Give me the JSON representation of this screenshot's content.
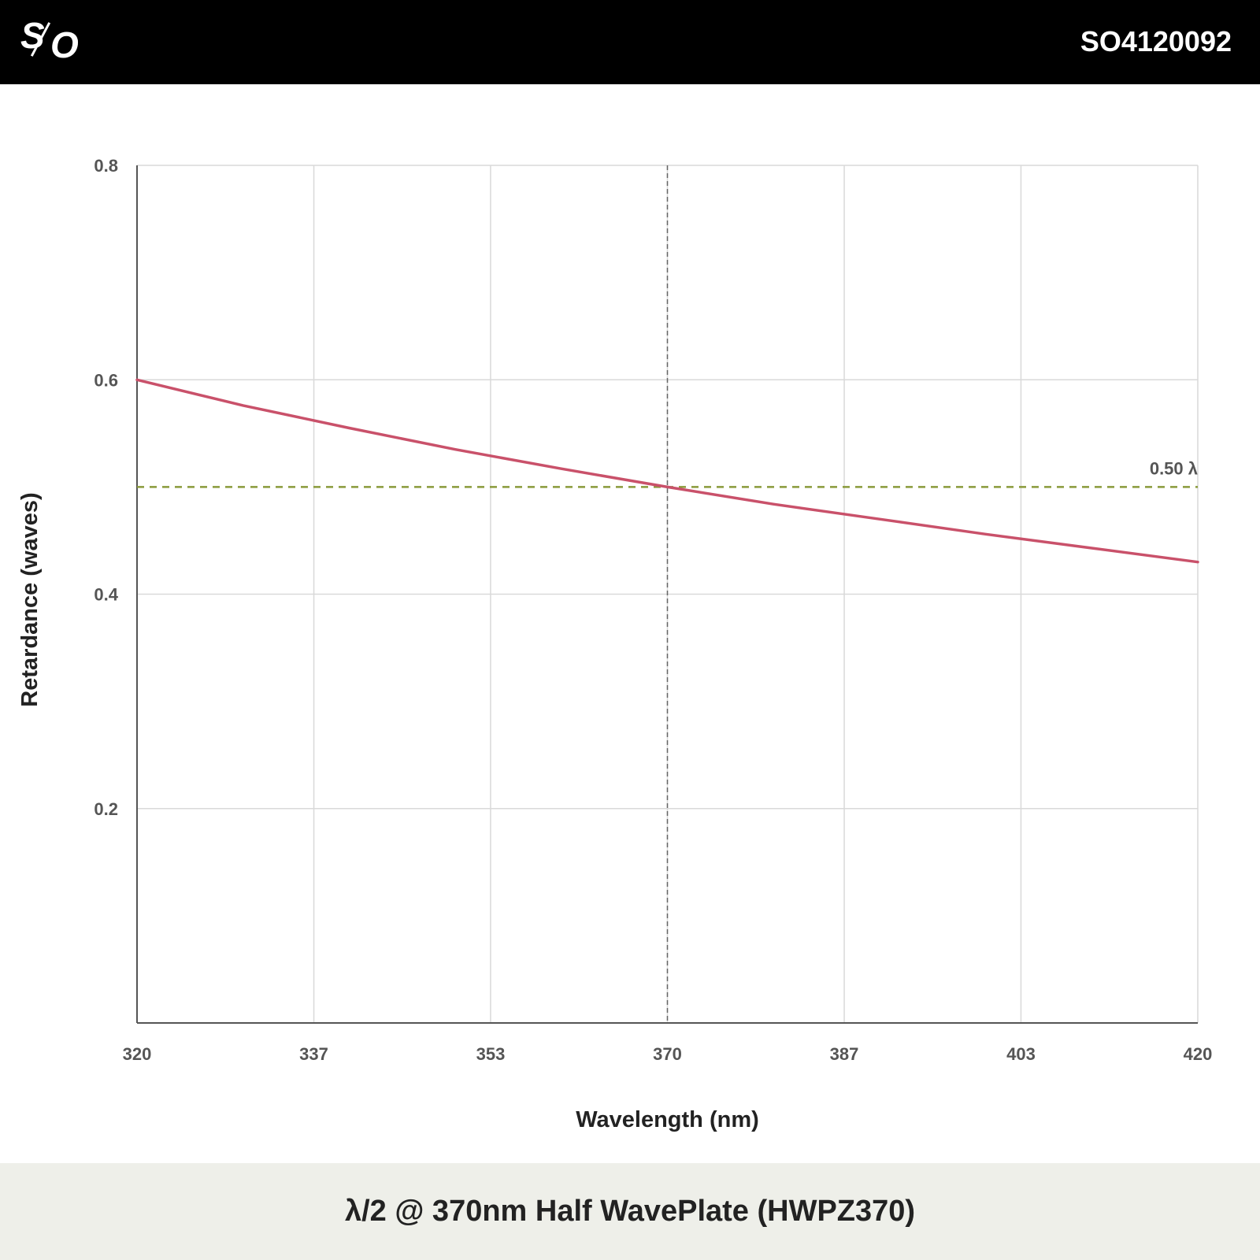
{
  "header": {
    "logo_text": "S/O",
    "part_number": "SO4120092"
  },
  "footer": {
    "title": "λ/2 @ 370nm Half WavePlate (HWPZ370)"
  },
  "colors": {
    "header_bg": "#000000",
    "footer_bg": "#eeefe9",
    "curve": "#c9516a",
    "reference_line": "#8a9a3a",
    "center_line": "#666666",
    "grid": "#d9d9d9"
  },
  "chart_data": {
    "type": "line",
    "title": "λ/2 @ 370nm Half WavePlate (HWPZ370)",
    "xlabel": "Wavelength (nm)",
    "ylabel": "Retardance (waves)",
    "xlim": [
      320,
      420
    ],
    "ylim": [
      0,
      0.8
    ],
    "x_ticks": [
      320,
      336.67,
      353.33,
      370,
      386.67,
      403.33,
      420
    ],
    "x_tick_labels": [
      "320",
      "337",
      "353",
      "370",
      "387",
      "403",
      "420"
    ],
    "y_ticks": [
      0.2,
      0.4,
      0.6,
      0.8
    ],
    "y_tick_labels": [
      "0.2",
      "0.4",
      "0.6",
      "0.8"
    ],
    "grid": true,
    "series": [
      {
        "x": [
          320,
          330,
          340,
          350,
          360,
          370,
          380,
          390,
          400,
          410,
          420
        ],
        "y": [
          0.6,
          0.576,
          0.555,
          0.535,
          0.517,
          0.5,
          0.484,
          0.47,
          0.456,
          0.443,
          0.43
        ]
      }
    ],
    "reference_line": {
      "y": 0.5,
      "label": "0.50 λ"
    },
    "center_line": {
      "x": 370
    }
  }
}
